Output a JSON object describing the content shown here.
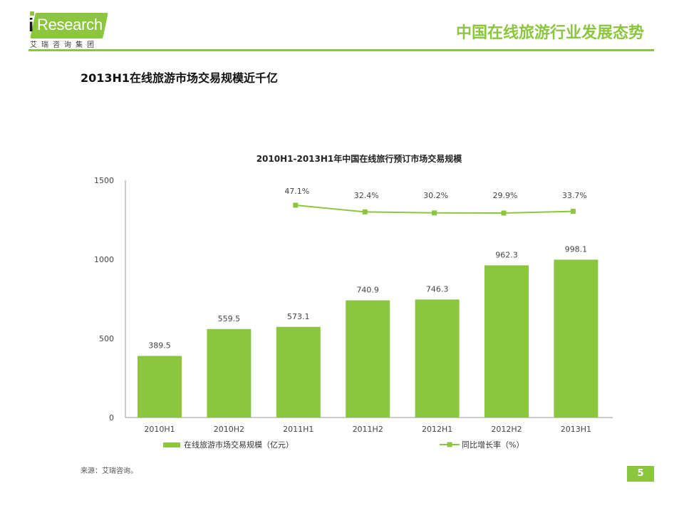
{
  "logo": {
    "brand_i": "i",
    "brand_word": "Research",
    "sub": "艾瑞咨询集团"
  },
  "header": {
    "title": "中国在线旅游行业发展态势"
  },
  "subtitle": "2013H1在线旅游市场交易规模近千亿",
  "chart_data": {
    "type": "bar",
    "title": "2010H1-2013H1年中国在线旅行预订市场交易规模",
    "categories": [
      "2010H1",
      "2010H2",
      "2011H1",
      "2011H2",
      "2012H1",
      "2012H2",
      "2013H1"
    ],
    "series": [
      {
        "name": "在线旅游市场交易规模（亿元）",
        "type": "bar",
        "values": [
          389.5,
          559.5,
          573.1,
          740.9,
          746.3,
          962.3,
          998.1
        ],
        "labels": [
          "389.5",
          "559.5",
          "573.1",
          "740.9",
          "746.3",
          "962.3",
          "998.1"
        ],
        "color": "#8cc63f"
      },
      {
        "name": "同比增长率（%）",
        "type": "line",
        "values": [
          null,
          null,
          47.1,
          32.4,
          30.2,
          29.9,
          33.7
        ],
        "labels": [
          "",
          "",
          "47.1%",
          "32.4%",
          "30.2%",
          "29.9%",
          "33.7%"
        ],
        "color": "#8cc63f"
      }
    ],
    "ylim": [
      0,
      1500
    ],
    "yticks": [
      "1500",
      "1000",
      "500",
      "0"
    ],
    "ytick_values": [
      1500,
      1000,
      500,
      0
    ],
    "legend_position": "bottom"
  },
  "footer": {
    "source": "来源：艾瑞咨询。",
    "page": "5"
  }
}
